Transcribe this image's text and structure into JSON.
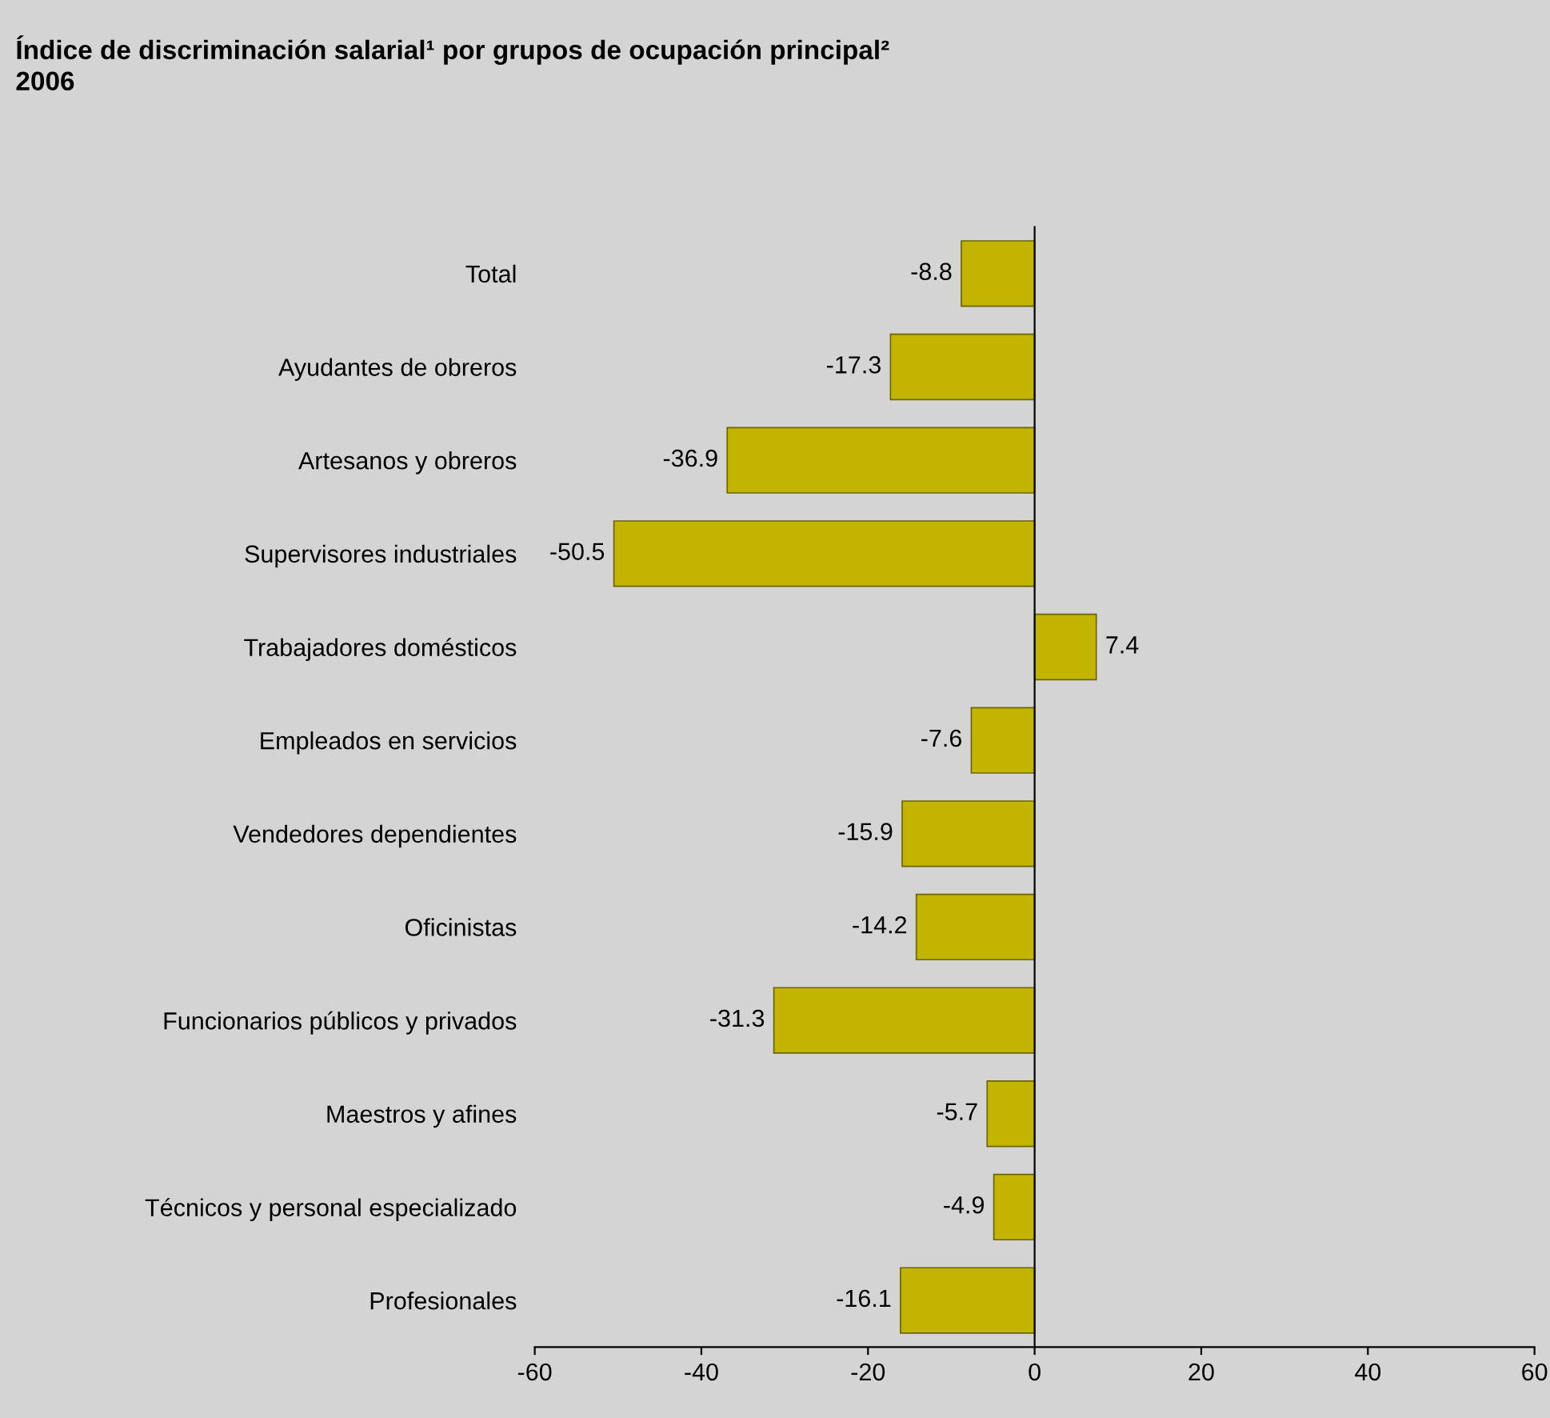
{
  "chart_data": {
    "type": "bar",
    "orientation": "horizontal",
    "title": "Índice de discriminación salarial¹ por grupos de ocupación principal²",
    "subtitle": "2006",
    "categories": [
      "Total",
      "Ayudantes de obreros",
      "Artesanos y obreros",
      "Supervisores industriales",
      "Trabajadores domésticos",
      "Empleados en servicios",
      "Vendedores dependientes",
      "Oficinistas",
      "Funcionarios públicos y privados",
      "Maestros y afines",
      "Técnicos y personal especializado",
      "Profesionales"
    ],
    "values": [
      -8.8,
      -17.3,
      -36.9,
      -50.5,
      7.4,
      -7.6,
      -15.9,
      -14.2,
      -31.3,
      -5.7,
      -4.9,
      -16.1
    ],
    "color": "#c2b400",
    "xlim": [
      -60,
      60
    ],
    "xticks": [
      -60,
      -40,
      -20,
      0,
      20,
      40,
      60
    ],
    "data_labels": true
  }
}
